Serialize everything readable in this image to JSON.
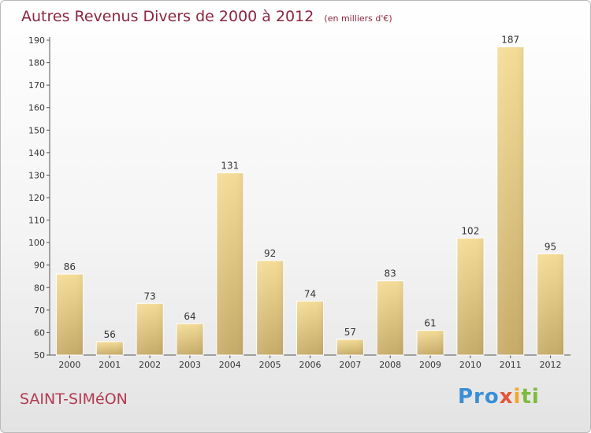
{
  "chart_data": {
    "type": "bar",
    "title": "Autres Revenus Divers de 2000 à 2012",
    "subtitle": "(en milliers d'€)",
    "categories": [
      "2000",
      "2001",
      "2002",
      "2003",
      "2004",
      "2005",
      "2006",
      "2007",
      "2008",
      "2009",
      "2010",
      "2011",
      "2012"
    ],
    "values": [
      86,
      56,
      73,
      64,
      131,
      92,
      74,
      57,
      83,
      61,
      102,
      187,
      95
    ],
    "ylim": [
      50,
      190
    ],
    "yticks": [
      50,
      60,
      70,
      80,
      90,
      100,
      110,
      120,
      130,
      140,
      150,
      160,
      170,
      180,
      190
    ],
    "grid": false,
    "bar_color": "#e0c880"
  },
  "commune": "SAINT-SIMéON",
  "logo": {
    "text": "Proxiti"
  }
}
